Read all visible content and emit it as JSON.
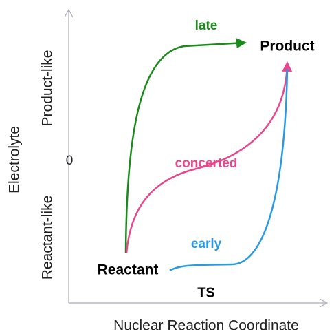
{
  "axes": {
    "y_label": "Electrolyte",
    "y_top": "Product-like",
    "y_bottom": "Reactant-like",
    "y_zero": "0",
    "x_label": "Nuclear Reaction Coordinate"
  },
  "states": {
    "reactant": "Reactant",
    "product": "Product",
    "ts": "TS"
  },
  "paths": {
    "late": "late",
    "concerted": "concerted",
    "early": "early"
  }
}
